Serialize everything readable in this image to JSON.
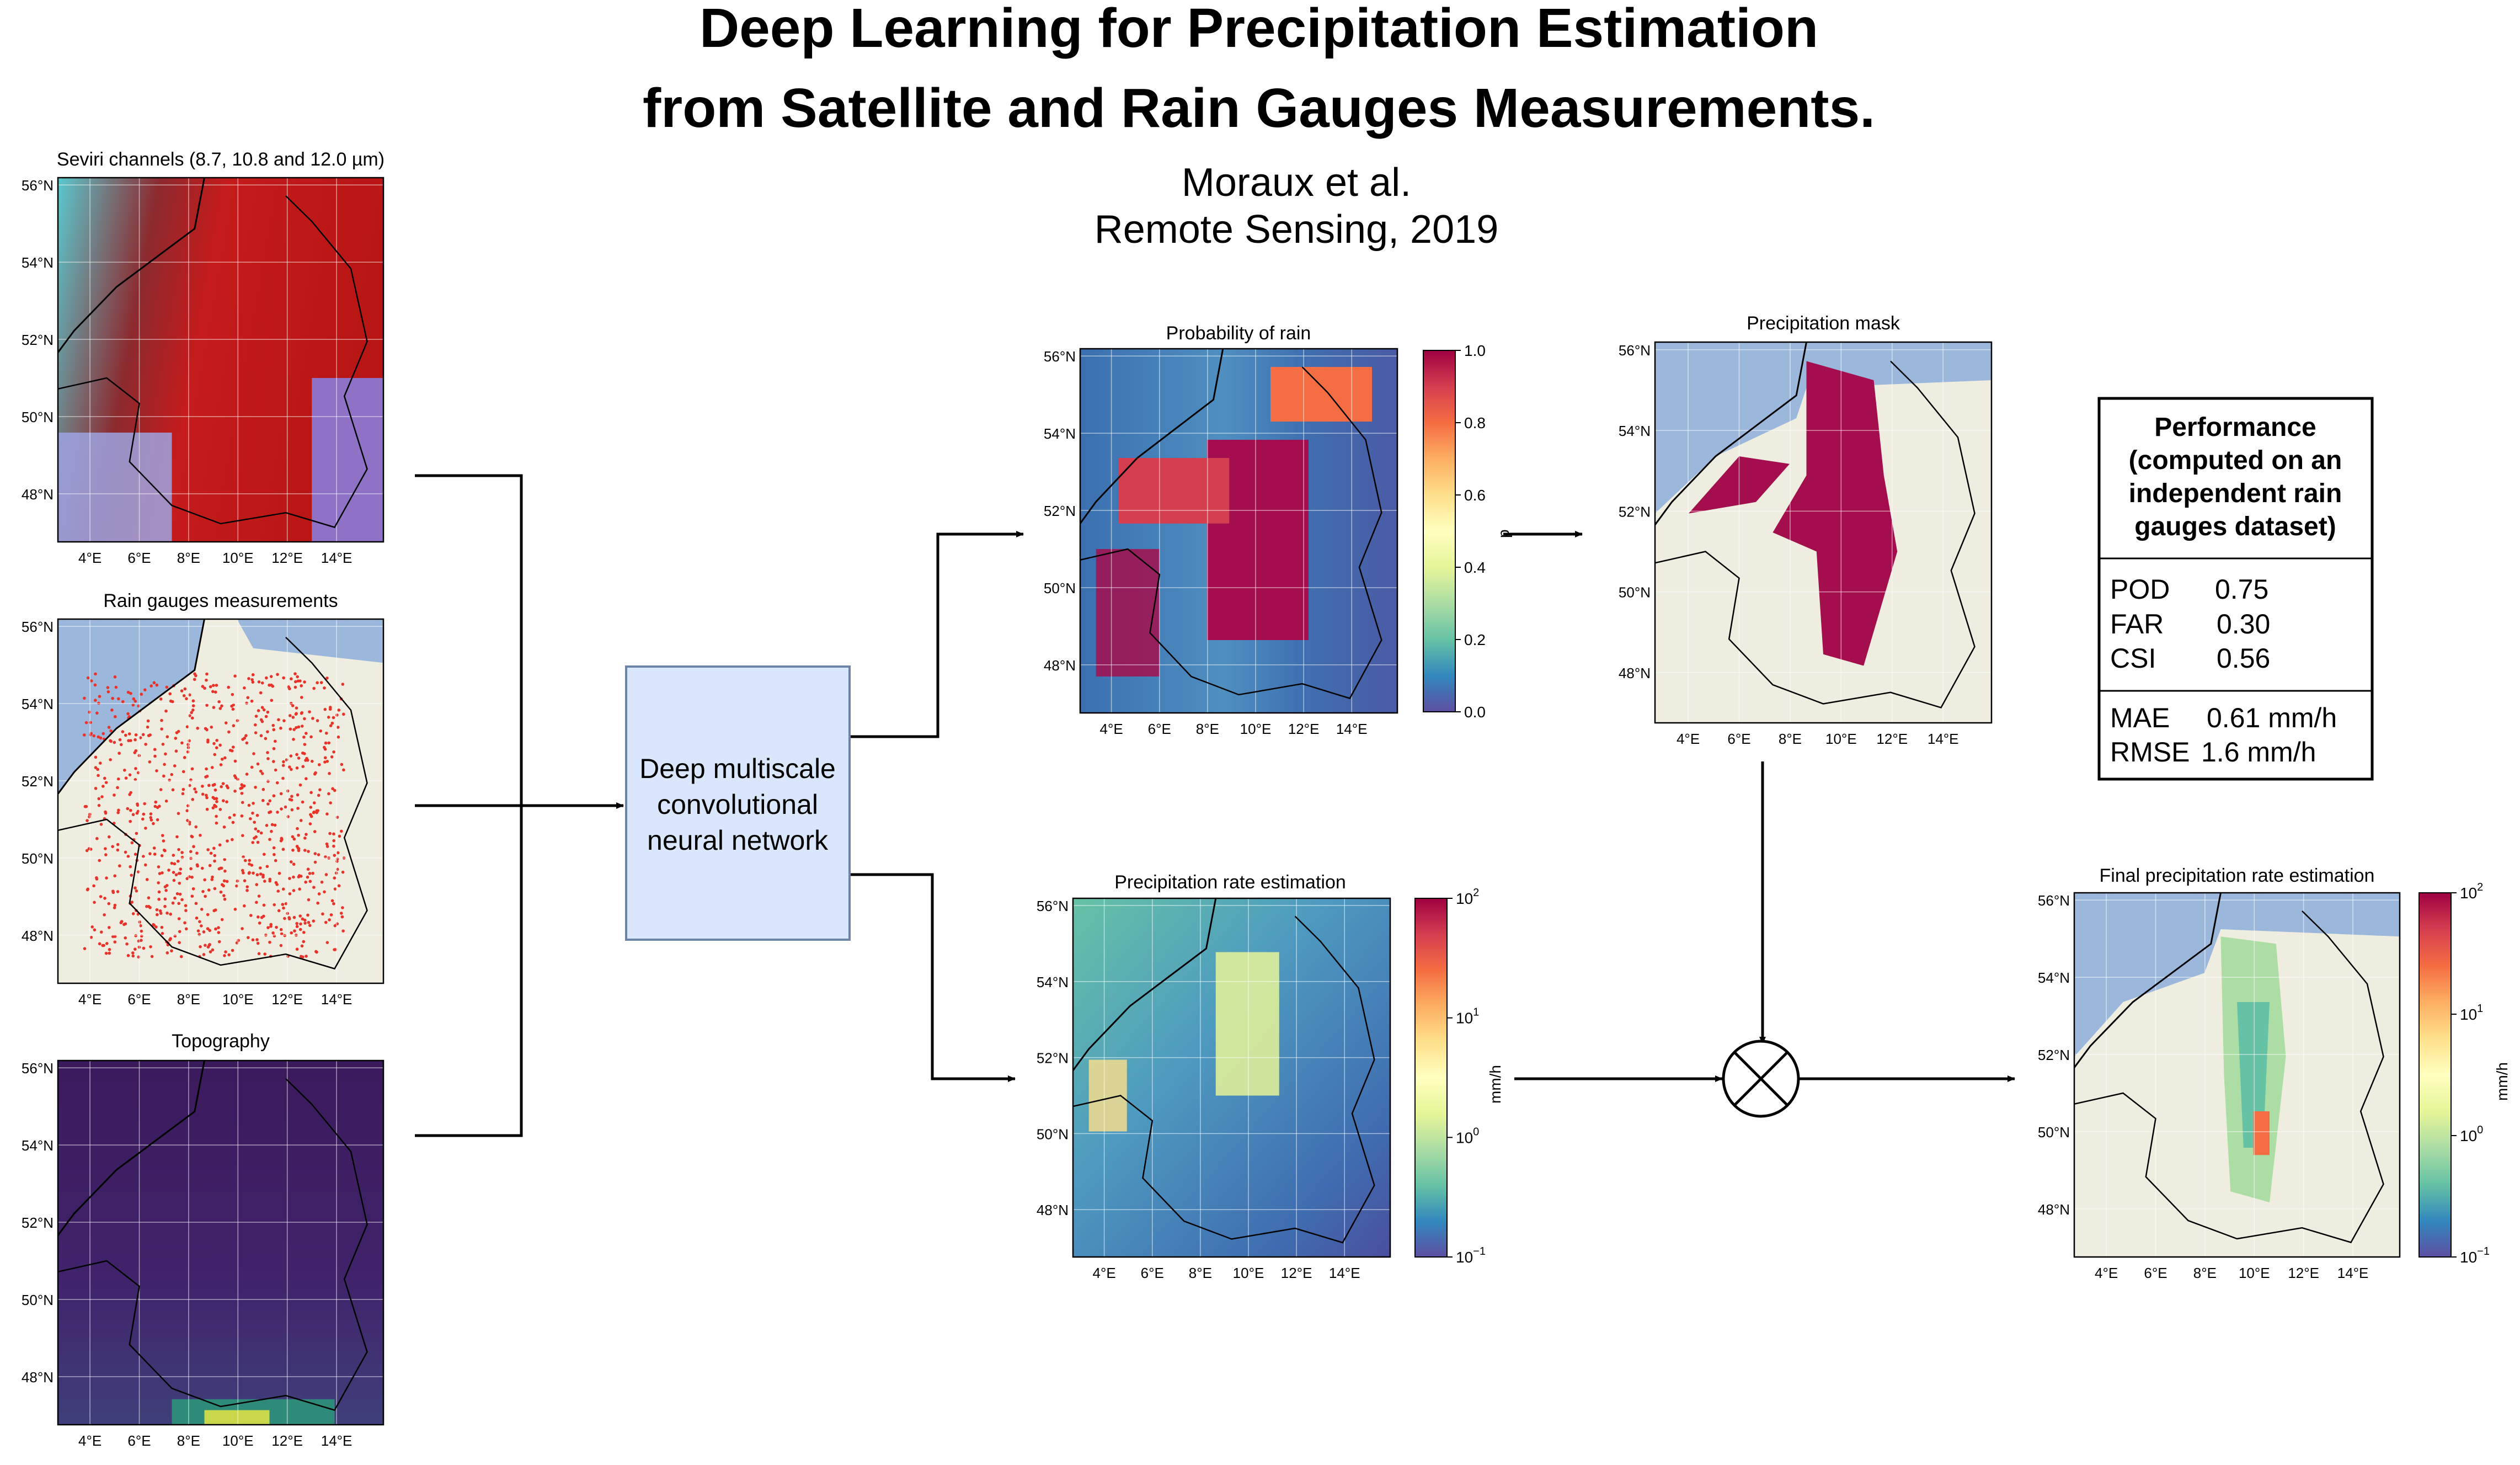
{
  "header": {
    "title_line1": "Deep Learning for Precipitation Estimation",
    "title_line2": "from Satellite and Rain Gauges Measurements.",
    "authors": "Moraux et al.",
    "venue": "Remote Sensing, 2019"
  },
  "axes": {
    "lat_ticks": [
      "56°N",
      "54°N",
      "52°N",
      "50°N",
      "48°N"
    ],
    "lon_ticks": [
      "4°E",
      "6°E",
      "8°E",
      "10°E",
      "12°E",
      "14°E"
    ]
  },
  "panels": [
    {
      "id": "seviri",
      "title": "Seviri channels (8.7, 10.8 and 12.0 µm)",
      "kind": "seviri"
    },
    {
      "id": "gauges",
      "title": "Rain gauges measurements",
      "kind": "gauges"
    },
    {
      "id": "topo",
      "title": "Topography",
      "kind": "topo"
    },
    {
      "id": "prob",
      "title": "Probability of rain",
      "kind": "prob"
    },
    {
      "id": "rate",
      "title": "Precipitation rate estimation",
      "kind": "rate"
    },
    {
      "id": "mask",
      "title": "Precipitation mask",
      "kind": "mask"
    },
    {
      "id": "final",
      "title": "Final precipitation rate estimation",
      "kind": "final"
    }
  ],
  "colorbars": {
    "probability": {
      "ticks": [
        "1.0",
        "0.8",
        "0.6",
        "0.4",
        "0.2",
        "0.0"
      ],
      "label": "p"
    },
    "rate": {
      "ticks_base": [
        "10",
        "10",
        "10",
        "10"
      ],
      "ticks_exp": [
        "2",
        "1",
        "0",
        "−1"
      ],
      "label": "mm/h"
    },
    "final": {
      "ticks_base": [
        "10",
        "10",
        "10",
        "10"
      ],
      "ticks_exp": [
        "2",
        "1",
        "0",
        "−1"
      ],
      "label": "mm/h"
    }
  },
  "model_box": {
    "line1": "Deep multiscale",
    "line2": "convolutional",
    "line3": "neural network"
  },
  "performance": {
    "title_lines": [
      "Performance",
      "(computed on an",
      "independent rain",
      "gauges dataset)"
    ],
    "metrics": [
      {
        "name": "POD",
        "value": "0.75"
      },
      {
        "name": "FAR",
        "value": "0.30"
      },
      {
        "name": "CSI",
        "value": "0.56"
      }
    ],
    "errors": [
      {
        "name": "MAE",
        "value": "0.61 mm/h"
      },
      {
        "name": "RMSE",
        "value": "1.6 mm/h"
      }
    ]
  },
  "colors": {
    "sea": "#9bb8dc",
    "land": "#efeddf",
    "mask_red": "#a50e4e",
    "gauge_dot": "#e8332a",
    "box_fill": "#dae6fb",
    "box_stroke": "#6b84a8"
  }
}
